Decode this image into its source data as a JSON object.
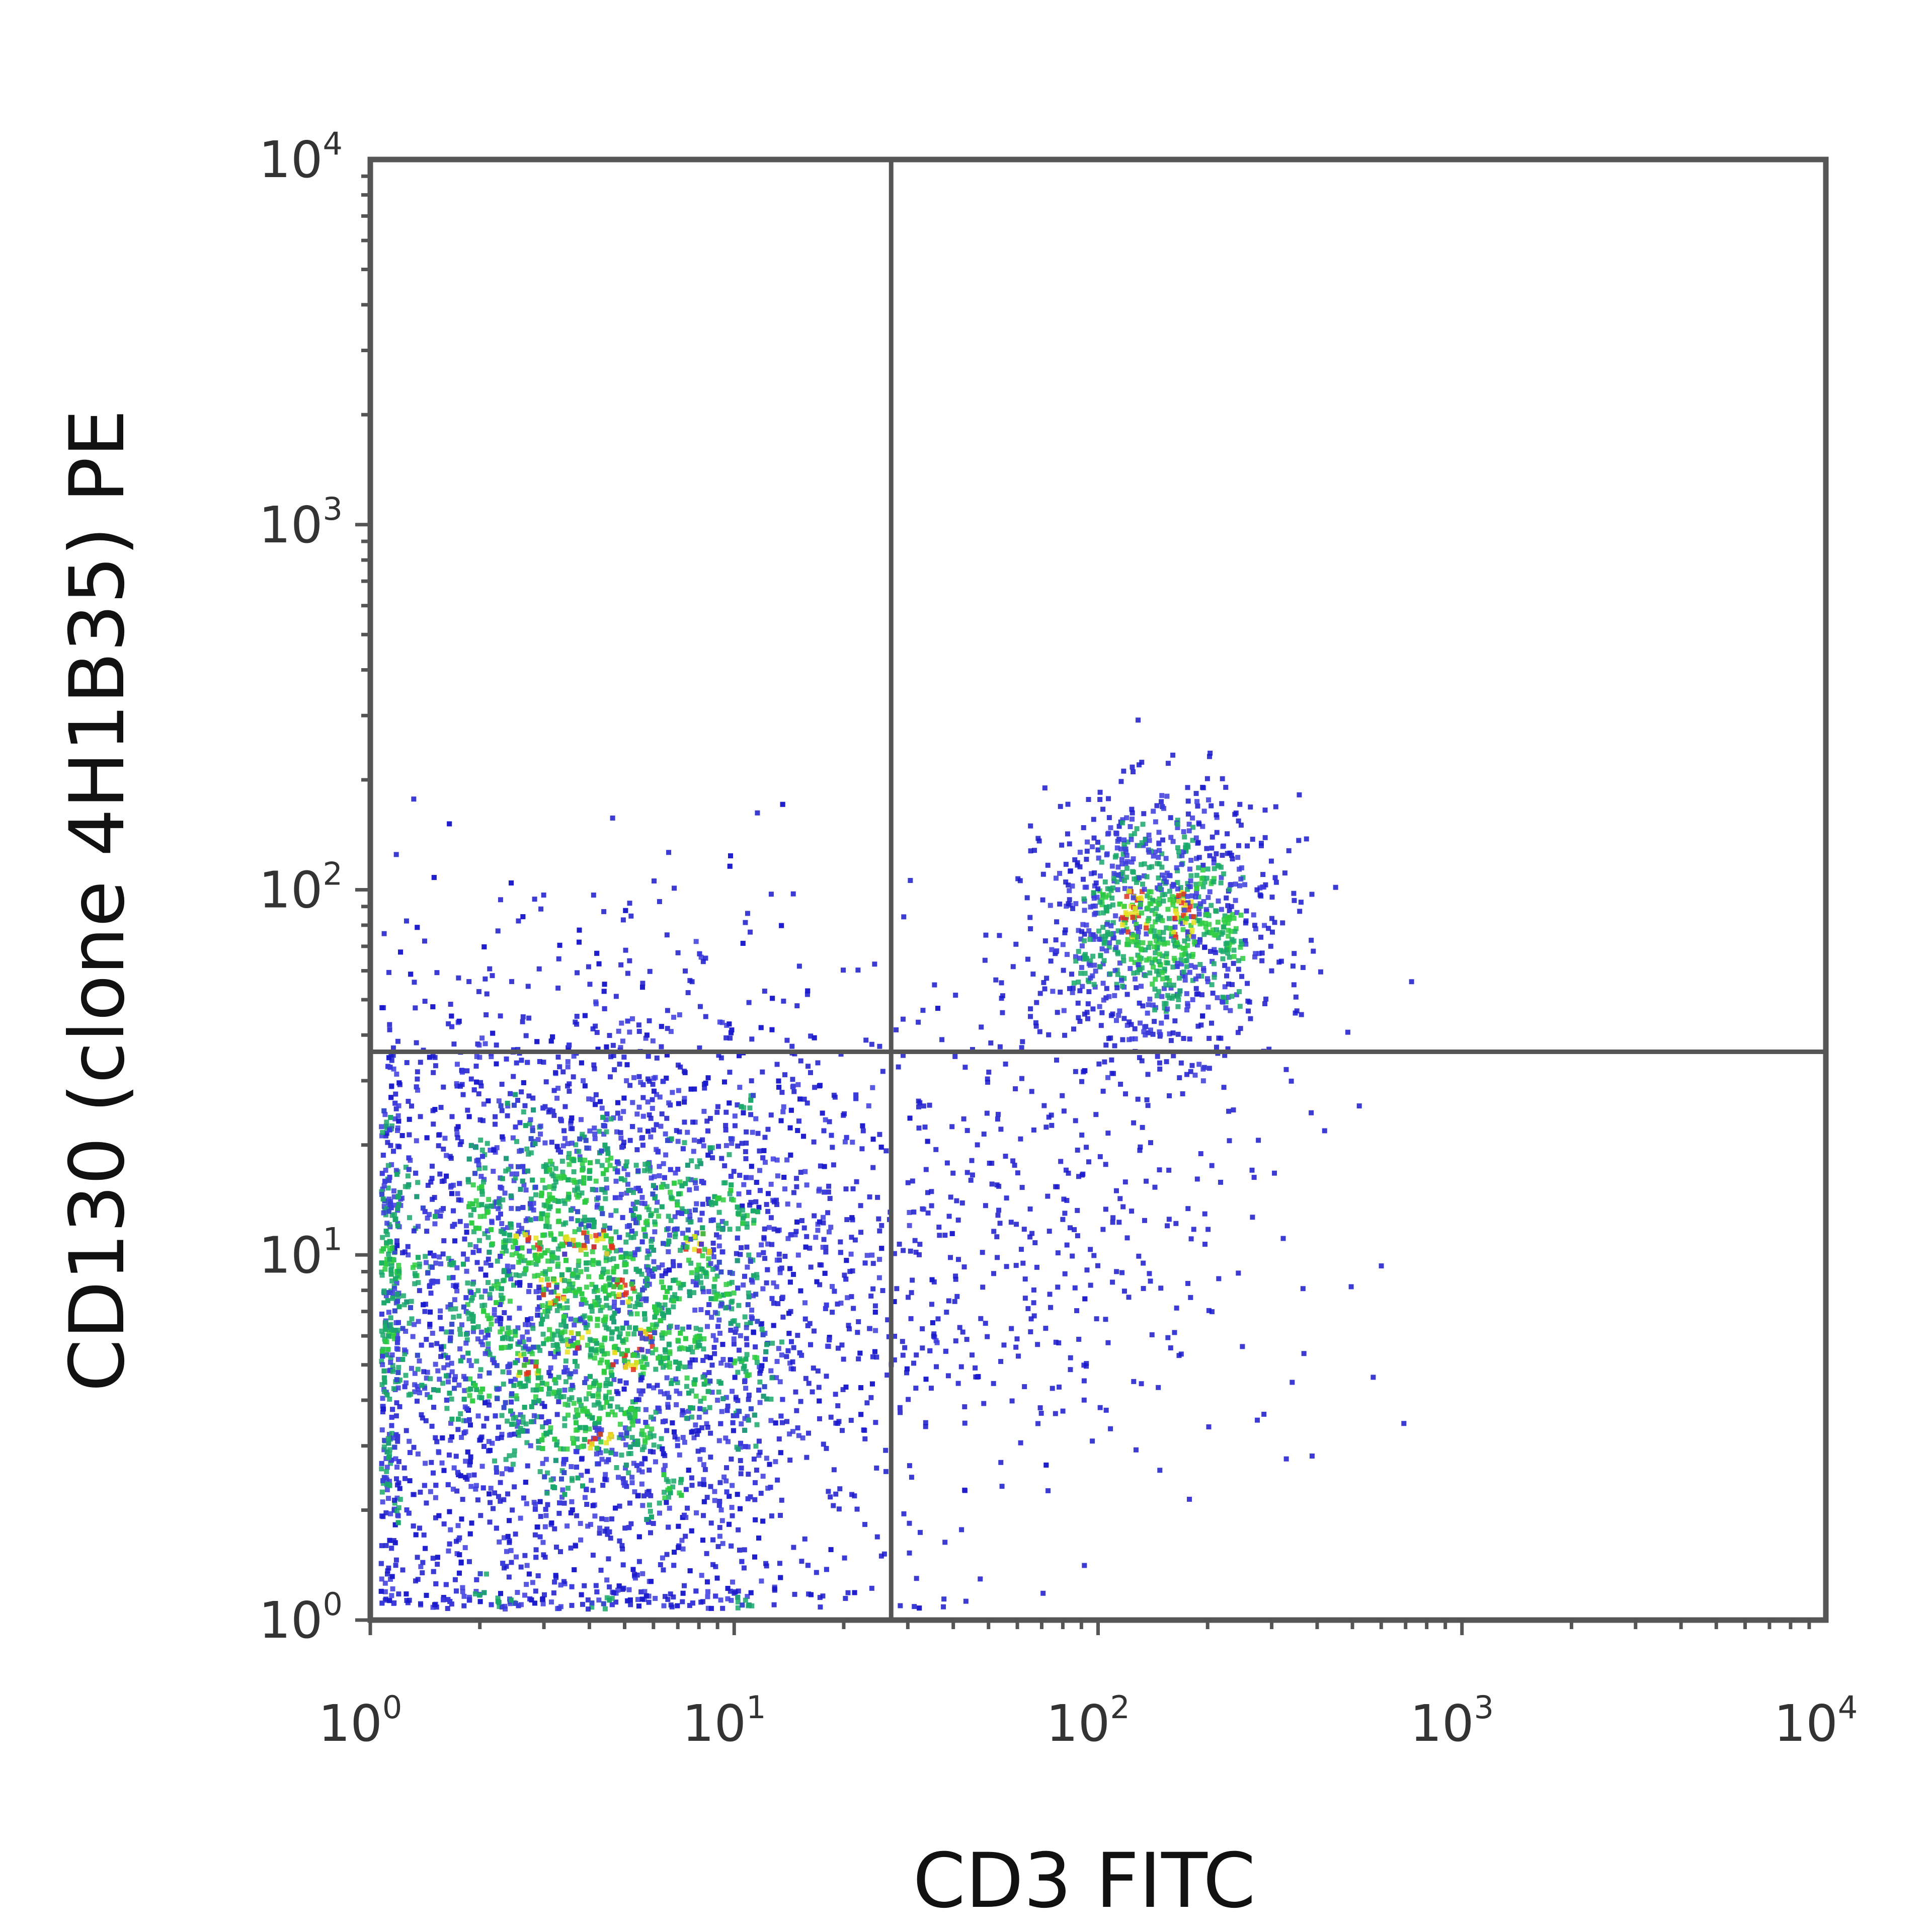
{
  "chart_data": {
    "type": "scatter",
    "title": "",
    "xlabel": "CD3 FITC",
    "ylabel": "CD130 (clone 4H1B35) PE",
    "xscale": "log",
    "yscale": "log",
    "xlim": [
      1,
      10000
    ],
    "ylim": [
      1,
      10000
    ],
    "x_tick_labels": [
      {
        "base": "10",
        "exp": "0",
        "value": 1
      },
      {
        "base": "10",
        "exp": "1",
        "value": 10
      },
      {
        "base": "10",
        "exp": "2",
        "value": 100
      },
      {
        "base": "10",
        "exp": "3",
        "value": 1000
      },
      {
        "base": "10",
        "exp": "4",
        "value": 10000
      }
    ],
    "y_tick_labels": [
      {
        "base": "10",
        "exp": "0",
        "value": 1
      },
      {
        "base": "10",
        "exp": "1",
        "value": 10
      },
      {
        "base": "10",
        "exp": "2",
        "value": 100
      },
      {
        "base": "10",
        "exp": "3",
        "value": 1000
      },
      {
        "base": "10",
        "exp": "4",
        "value": 10000
      }
    ],
    "grid": false,
    "quadrant_gates": {
      "x": 27,
      "y": 36
    },
    "populations": [
      {
        "center": [
          4,
          7
        ],
        "spread_decades": [
          0.38,
          0.42
        ],
        "count": 5200
      },
      {
        "center": [
          150,
          80
        ],
        "spread_decades": [
          0.16,
          0.17
        ],
        "count": 1100
      },
      {
        "center": [
          60,
          12
        ],
        "spread_decades": [
          0.35,
          0.4
        ],
        "count": 450
      }
    ],
    "density_colors": [
      "#1a1acc",
      "#3b3bdd",
      "#1aa86a",
      "#2ecc40",
      "#e8e020",
      "#e03020"
    ],
    "frame_color": "#555555"
  }
}
